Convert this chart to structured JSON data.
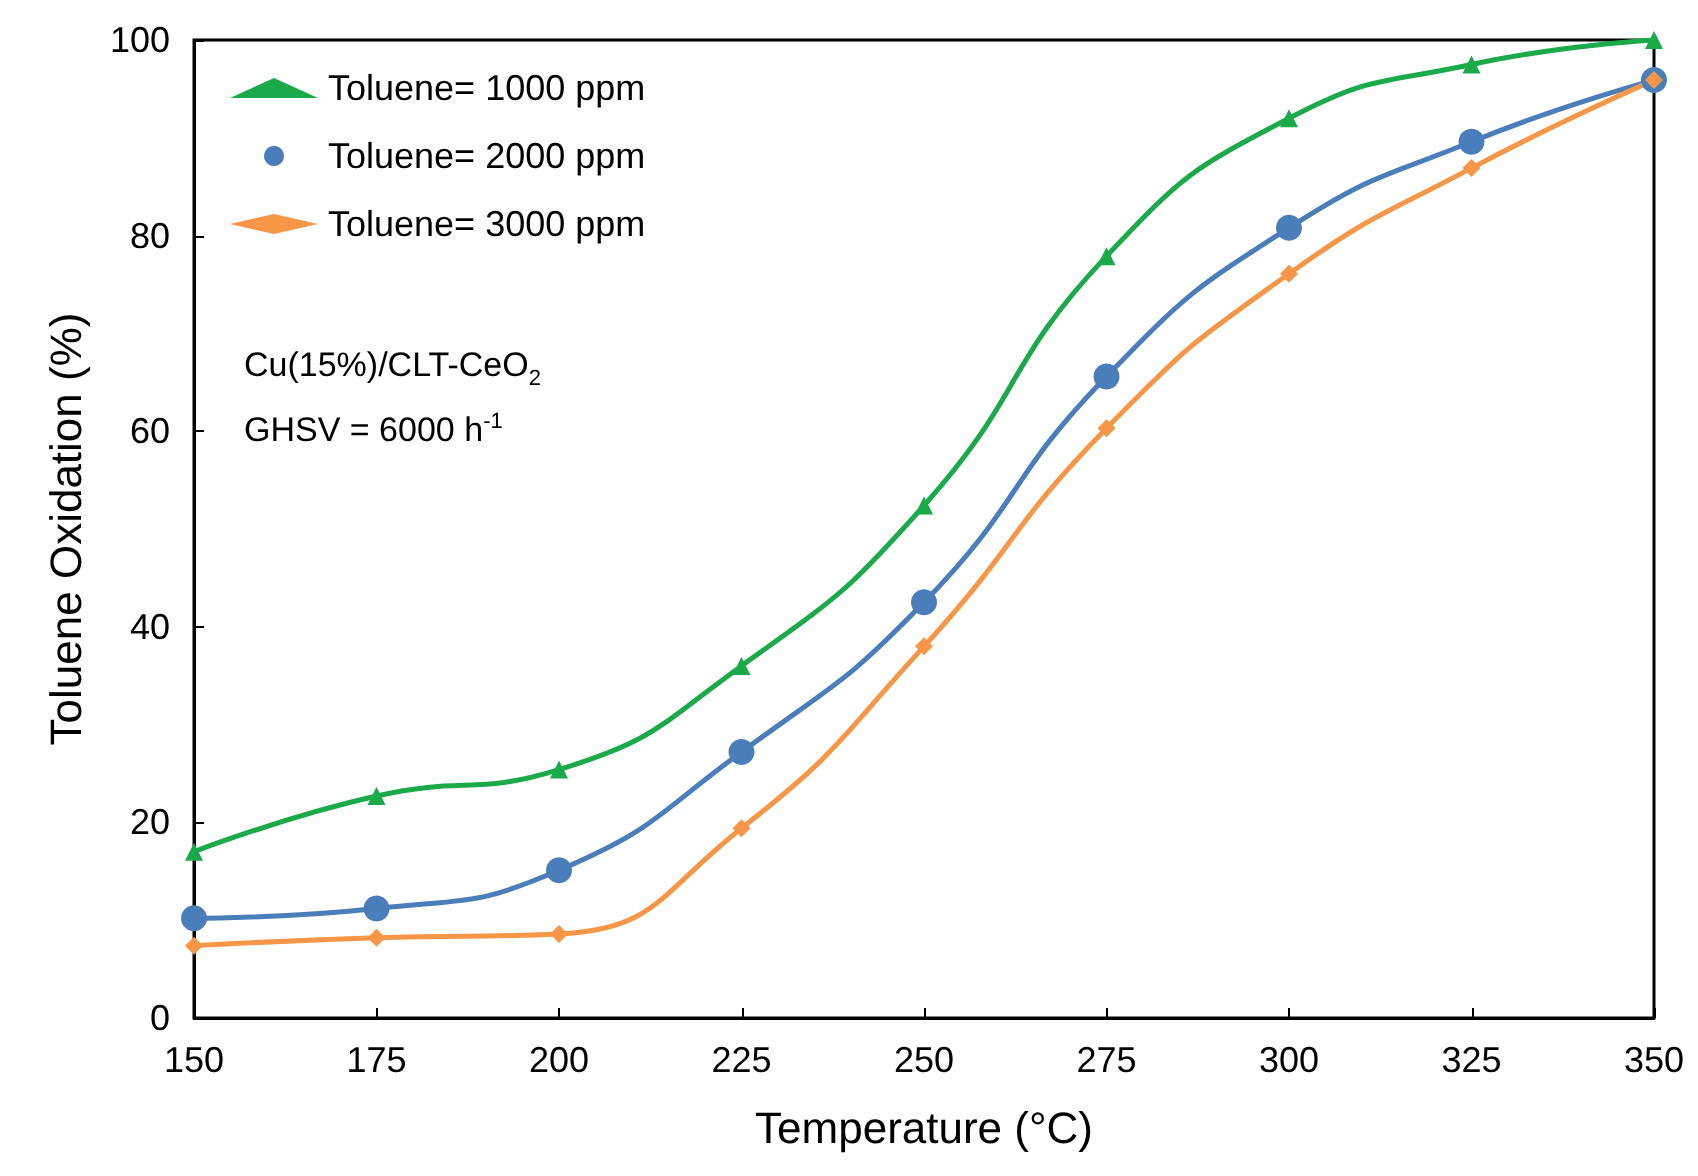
{
  "chart_data": {
    "type": "line",
    "xlabel": "Temperature (°C)",
    "ylabel": "Toluene Oxidation (%)",
    "x": [
      150,
      175,
      200,
      225,
      250,
      275,
      300,
      325,
      350
    ],
    "xlim": [
      150,
      350
    ],
    "xticks": [
      150,
      175,
      200,
      225,
      250,
      275,
      300,
      325,
      350
    ],
    "ylim": [
      0,
      100
    ],
    "yticks": [
      0,
      20,
      40,
      60,
      80,
      100
    ],
    "legend": "top left",
    "grid": false,
    "annotations": [
      "Cu(15%)/CLT-CeO$_{2}$",
      "GHSV = 6000 h$^{-1}$"
    ],
    "series": [
      {
        "name": "Toluene= 1000 ppm",
        "color": "#1aaa4a",
        "marker": "triangle",
        "values": [
          17.0,
          22.7,
          25.4,
          36.0,
          52.4,
          77.9,
          92.0,
          97.5,
          100
        ]
      },
      {
        "name": "Toluene= 2000 ppm",
        "color": "#4a7ebb",
        "marker": "circle",
        "values": [
          10.2,
          11.2,
          15.1,
          27.2,
          42.5,
          65.6,
          80.8,
          89.6,
          95.9
        ]
      },
      {
        "name": "Toluene= 3000 ppm",
        "color": "#f79646",
        "marker": "diamond",
        "values": [
          7.4,
          8.2,
          8.6,
          19.4,
          38.0,
          60.3,
          76.1,
          86.9,
          95.9
        ]
      }
    ]
  }
}
